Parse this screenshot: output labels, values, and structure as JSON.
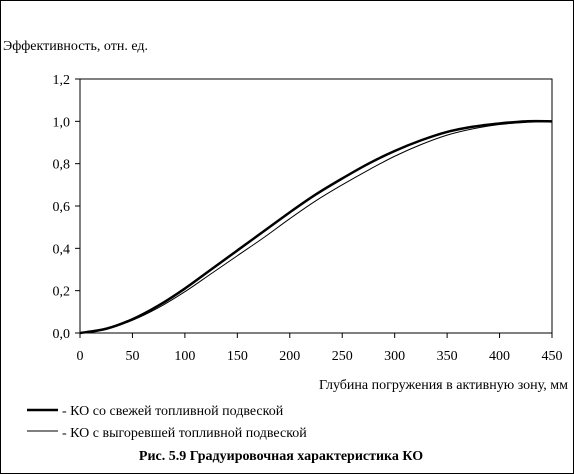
{
  "chart_data": {
    "type": "line",
    "ylabel": "Эффективность, отн. ед.",
    "xlabel": "Глубина погружения в активную зону, мм",
    "caption": "Рис. 5.9 Градуировочная характеристика КО",
    "xlim": [
      0,
      450
    ],
    "ylim": [
      0,
      1.2
    ],
    "x_ticks": [
      "0",
      "50",
      "100",
      "150",
      "200",
      "250",
      "300",
      "350",
      "400",
      "450"
    ],
    "y_ticks": [
      "0,0",
      "0,2",
      "0,4",
      "0,6",
      "0,8",
      "1,0",
      "1,2"
    ],
    "grid": false,
    "legend_position": "bottom",
    "x": [
      0,
      25,
      50,
      75,
      100,
      125,
      150,
      175,
      200,
      225,
      250,
      275,
      300,
      325,
      350,
      375,
      400,
      425,
      450
    ],
    "series": [
      {
        "name": "- КО со свежей топливной подвеской",
        "style": "thick",
        "values": [
          0.0,
          0.02,
          0.065,
          0.13,
          0.21,
          0.3,
          0.39,
          0.48,
          0.57,
          0.655,
          0.73,
          0.8,
          0.86,
          0.91,
          0.95,
          0.975,
          0.99,
          1.0,
          1.0
        ]
      },
      {
        "name": "- КО с выгоревшей топливной подвеской",
        "style": "thin",
        "values": [
          0.0,
          0.02,
          0.06,
          0.12,
          0.195,
          0.28,
          0.365,
          0.45,
          0.54,
          0.625,
          0.7,
          0.77,
          0.835,
          0.89,
          0.935,
          0.965,
          0.985,
          0.995,
          1.0
        ]
      }
    ]
  },
  "colors": {
    "line": "#000000",
    "background": "#ffffff"
  }
}
